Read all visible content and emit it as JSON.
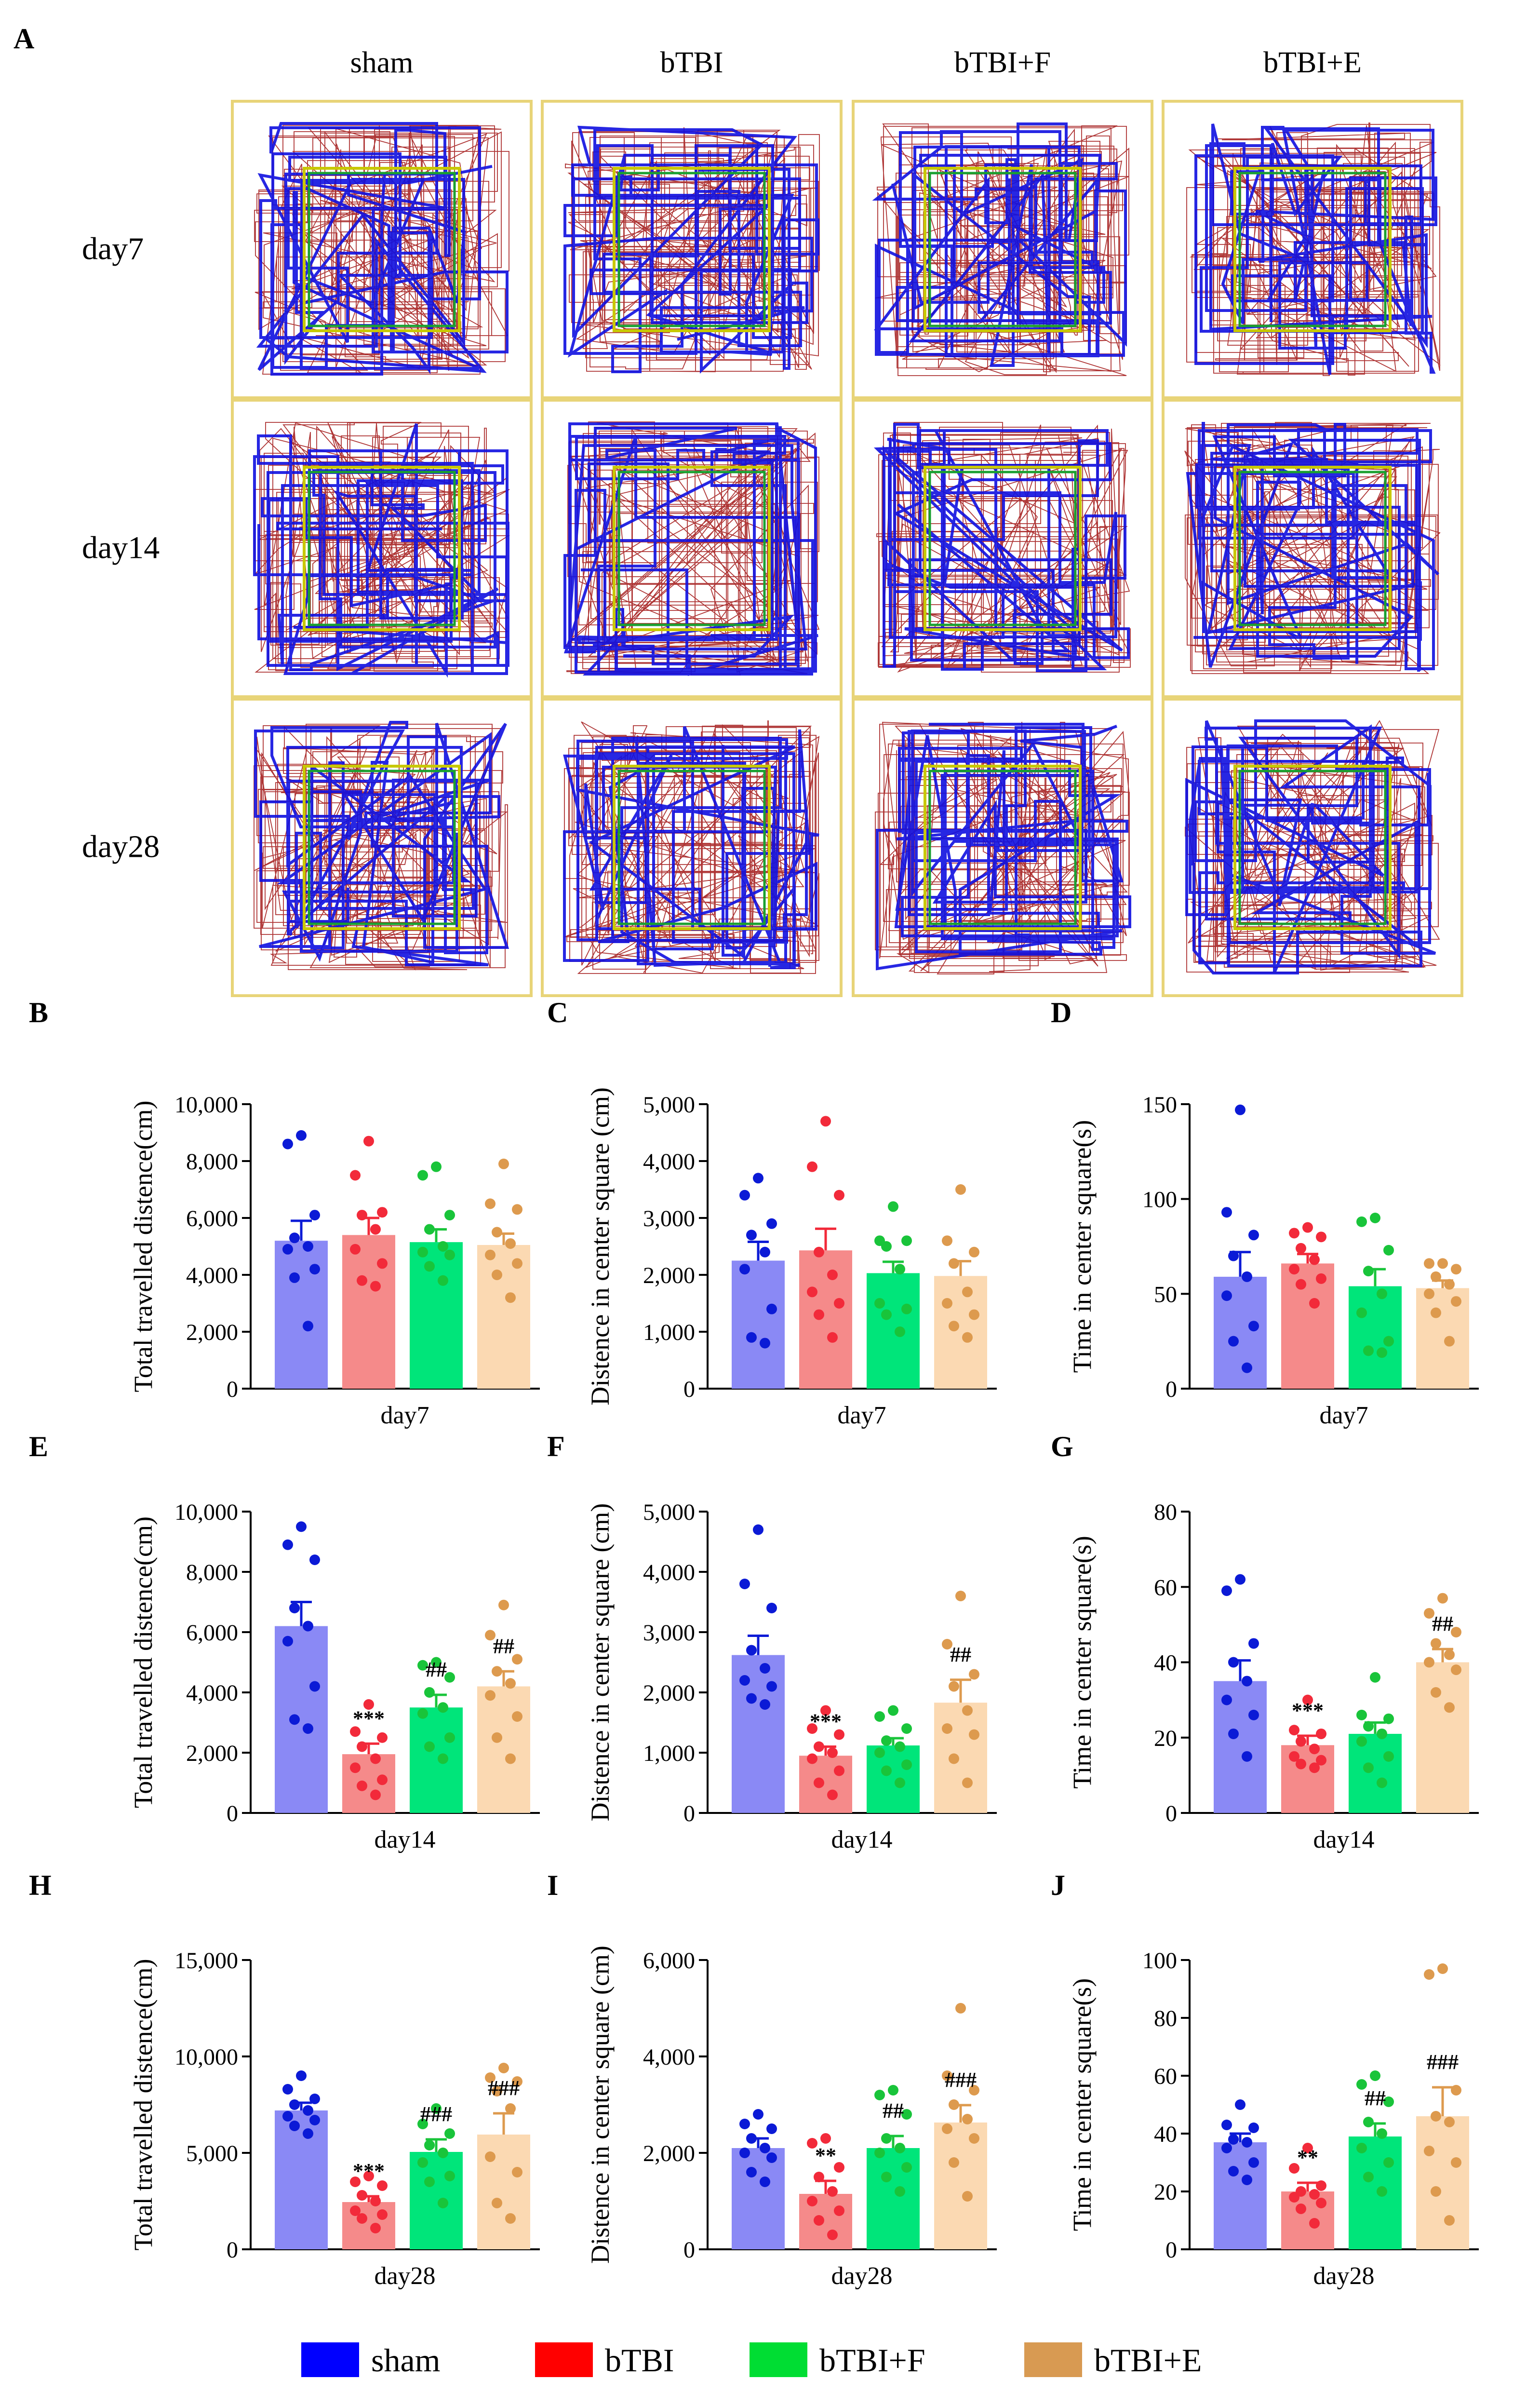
{
  "panel_a": {
    "label": "A",
    "columns": [
      "sham",
      "bTBI",
      "bTBI+F",
      "bTBI+E"
    ],
    "rows": [
      "day7",
      "day14",
      "day28"
    ]
  },
  "colors": {
    "sham": "#0000ff",
    "bTBI": "#ff0000",
    "bTBI+F": "#00dd33",
    "bTBI+E": "#d89a52",
    "bar_sham": "#8a89f5",
    "bar_bTBI": "#f58a8a",
    "bar_bTBI+F": "#00e57a",
    "bar_bTBI+E": "#fbd9b2",
    "pt_sham": "#0b1ad6",
    "pt_bTBI": "#f22a3a",
    "pt_bTBI+F": "#19c43a",
    "pt_bTBI+E": "#dd9a4e",
    "track_red": "#a01010",
    "track_blue": "#1010e0",
    "arena_border": "#e8d478",
    "zone_yellow": "#c8c800",
    "zone_green": "#1aa030"
  },
  "legend": {
    "items": [
      {
        "key": "sham",
        "label": "sham"
      },
      {
        "key": "bTBI",
        "label": "bTBI"
      },
      {
        "key": "bTBI+F",
        "label": "bTBI+F"
      },
      {
        "key": "bTBI+E",
        "label": "bTBI+E"
      }
    ]
  },
  "chart_data": [
    {
      "label": "B",
      "type": "bar",
      "title": "",
      "xlabel": "day7",
      "ylabel": "Total travelled distence(cm)",
      "categories": [
        "sham",
        "bTBI",
        "bTBI+F",
        "bTBI+E"
      ],
      "ylim": [
        0,
        10000
      ],
      "yticks": [
        0,
        2000,
        4000,
        6000,
        8000,
        10000
      ],
      "ytick_labels": [
        "0",
        "2,000",
        "4,000",
        "6,000",
        "8,000",
        "10,000"
      ],
      "values": [
        5200,
        5400,
        5150,
        5050
      ],
      "errors": [
        700,
        600,
        450,
        400
      ],
      "points": [
        [
          8900,
          8600,
          6100,
          5300,
          5000,
          4900,
          4200,
          3900,
          2200
        ],
        [
          8700,
          7500,
          6200,
          6100,
          5600,
          4900,
          4400,
          3800,
          3600
        ],
        [
          7800,
          7500,
          6100,
          5600,
          5000,
          4800,
          4700,
          4300,
          3800
        ],
        [
          7900,
          6500,
          6300,
          5500,
          5100,
          4700,
          4400,
          4000,
          3200
        ]
      ],
      "annotations": [
        "",
        "",
        "",
        ""
      ]
    },
    {
      "label": "C",
      "type": "bar",
      "title": "",
      "xlabel": "day7",
      "ylabel": "Distence in center square (cm)",
      "categories": [
        "sham",
        "bTBI",
        "bTBI+F",
        "bTBI+E"
      ],
      "ylim": [
        0,
        5000
      ],
      "yticks": [
        0,
        1000,
        2000,
        3000,
        4000,
        5000
      ],
      "ytick_labels": [
        "0",
        "1,000",
        "2,000",
        "3,000",
        "4,000",
        "5,000"
      ],
      "values": [
        2250,
        2430,
        2030,
        1980
      ],
      "errors": [
        330,
        380,
        200,
        260
      ],
      "points": [
        [
          3700,
          3400,
          2900,
          2700,
          2400,
          2100,
          1400,
          900,
          800
        ],
        [
          4700,
          3900,
          3400,
          2400,
          2000,
          1700,
          1500,
          1300,
          900
        ],
        [
          3200,
          2600,
          2600,
          2500,
          2100,
          1500,
          1400,
          1300,
          1000
        ],
        [
          3500,
          2600,
          2400,
          2200,
          1700,
          1500,
          1300,
          1100,
          900
        ]
      ],
      "annotations": [
        "",
        "",
        "",
        ""
      ]
    },
    {
      "label": "D",
      "type": "bar",
      "title": "",
      "xlabel": "day7",
      "ylabel": "Time in center square(s)",
      "categories": [
        "sham",
        "bTBI",
        "bTBI+F",
        "bTBI+E"
      ],
      "ylim": [
        0,
        150
      ],
      "yticks": [
        0,
        50,
        100,
        150
      ],
      "ytick_labels": [
        "0",
        "50",
        "100",
        "150"
      ],
      "values": [
        59,
        66,
        54,
        53
      ],
      "errors": [
        13,
        5,
        9,
        4
      ],
      "points": [
        [
          147,
          93,
          81,
          70,
          59,
          49,
          33,
          25,
          11
        ],
        [
          85,
          82,
          80,
          74,
          68,
          63,
          58,
          55,
          45
        ],
        [
          90,
          88,
          73,
          62,
          50,
          40,
          25,
          20,
          19
        ],
        [
          66,
          66,
          63,
          59,
          55,
          50,
          46,
          40,
          25
        ]
      ],
      "annotations": [
        "",
        "",
        "",
        ""
      ]
    },
    {
      "label": "E",
      "type": "bar",
      "title": "",
      "xlabel": "day14",
      "ylabel": "Total travelled distence(cm)",
      "categories": [
        "sham",
        "bTBI",
        "bTBI+F",
        "bTBI+E"
      ],
      "ylim": [
        0,
        10000
      ],
      "yticks": [
        0,
        2000,
        4000,
        6000,
        8000,
        10000
      ],
      "ytick_labels": [
        "0",
        "2,000",
        "4,000",
        "6,000",
        "8,000",
        "10,000"
      ],
      "values": [
        6200,
        1950,
        3500,
        4200
      ],
      "errors": [
        800,
        350,
        420,
        500
      ],
      "points": [
        [
          9500,
          8900,
          8400,
          6800,
          6200,
          5700,
          4200,
          3100,
          2800
        ],
        [
          3600,
          2700,
          2500,
          2200,
          1800,
          1500,
          1100,
          900,
          600
        ],
        [
          5000,
          4900,
          4500,
          4000,
          3500,
          3300,
          2500,
          2200,
          1800
        ],
        [
          6900,
          5900,
          5100,
          4700,
          4300,
          3900,
          3200,
          2500,
          1800
        ]
      ],
      "annotations": [
        "",
        "***",
        "##",
        "##"
      ]
    },
    {
      "label": "F",
      "type": "bar",
      "title": "",
      "xlabel": "day14",
      "ylabel": "Distence in center square (cm)",
      "categories": [
        "sham",
        "bTBI",
        "bTBI+F",
        "bTBI+E"
      ],
      "ylim": [
        0,
        5000
      ],
      "yticks": [
        0,
        1000,
        2000,
        3000,
        4000,
        5000
      ],
      "ytick_labels": [
        "0",
        "1,000",
        "2,000",
        "3,000",
        "4,000",
        "5,000"
      ],
      "values": [
        2620,
        950,
        1120,
        1830
      ],
      "errors": [
        320,
        150,
        120,
        380
      ],
      "points": [
        [
          4700,
          3800,
          3400,
          2700,
          2400,
          2200,
          2100,
          1900,
          1800
        ],
        [
          1700,
          1400,
          1300,
          1100,
          1000,
          900,
          700,
          500,
          300
        ],
        [
          1700,
          1600,
          1400,
          1200,
          1100,
          1000,
          800,
          700,
          500
        ],
        [
          3600,
          2800,
          2300,
          2100,
          1700,
          1400,
          1300,
          900,
          500
        ]
      ],
      "annotations": [
        "",
        "***",
        "",
        "##"
      ]
    },
    {
      "label": "G",
      "type": "bar",
      "title": "",
      "xlabel": "day14",
      "ylabel": "Time in center square(s)",
      "categories": [
        "sham",
        "bTBI",
        "bTBI+F",
        "bTBI+E"
      ],
      "ylim": [
        0,
        80
      ],
      "yticks": [
        0,
        20,
        40,
        60,
        80
      ],
      "ytick_labels": [
        "0",
        "20",
        "40",
        "60",
        "80"
      ],
      "values": [
        35,
        18,
        21,
        40
      ],
      "errors": [
        5.5,
        2.5,
        3,
        3.5
      ],
      "points": [
        [
          62,
          59,
          45,
          40,
          35,
          30,
          26,
          21,
          15
        ],
        [
          30,
          22,
          21,
          19,
          17,
          15,
          14,
          13,
          12
        ],
        [
          36,
          26,
          25,
          23,
          21,
          19,
          15,
          12,
          8
        ],
        [
          57,
          53,
          48,
          45,
          42,
          40,
          38,
          32,
          28
        ]
      ],
      "annotations": [
        "",
        "***",
        "",
        "##"
      ]
    },
    {
      "label": "H",
      "type": "bar",
      "title": "",
      "xlabel": "day28",
      "ylabel": "Total travelled distence(cm)",
      "categories": [
        "sham",
        "bTBI",
        "bTBI+F",
        "bTBI+E"
      ],
      "ylim": [
        0,
        15000
      ],
      "yticks": [
        0,
        5000,
        10000,
        15000
      ],
      "ytick_labels": [
        "0",
        "5,000",
        "10,000",
        "15,000"
      ],
      "values": [
        7200,
        2450,
        5050,
        5950
      ],
      "errors": [
        400,
        300,
        650,
        1100
      ],
      "points": [
        [
          9000,
          8300,
          7800,
          7500,
          7200,
          6900,
          6700,
          6400,
          6000
        ],
        [
          3800,
          3500,
          3300,
          2800,
          2500,
          2000,
          1800,
          1600,
          1100
        ],
        [
          7300,
          6500,
          6000,
          5400,
          5000,
          4500,
          3800,
          3500,
          2400
        ],
        [
          9400,
          8900,
          8700,
          8200,
          7300,
          4800,
          4000,
          2400,
          1600
        ]
      ],
      "annotations": [
        "",
        "***",
        "###",
        "###"
      ]
    },
    {
      "label": "I",
      "type": "bar",
      "title": "",
      "xlabel": "day28",
      "ylabel": "Distence in center square (cm)",
      "categories": [
        "sham",
        "bTBI",
        "bTBI+F",
        "bTBI+E"
      ],
      "ylim": [
        0,
        6000
      ],
      "yticks": [
        0,
        2000,
        4000,
        6000
      ],
      "ytick_labels": [
        "0",
        "2,000",
        "4,000",
        "6,000"
      ],
      "values": [
        2100,
        1150,
        2100,
        2630
      ],
      "errors": [
        200,
        270,
        250,
        360
      ],
      "points": [
        [
          2800,
          2600,
          2500,
          2300,
          2100,
          2000,
          1900,
          1600,
          1400
        ],
        [
          2300,
          2200,
          1700,
          1500,
          1200,
          1000,
          800,
          600,
          300
        ],
        [
          3300,
          3200,
          2800,
          2300,
          2100,
          2000,
          1700,
          1500,
          1200
        ],
        [
          5000,
          3600,
          3300,
          3000,
          2700,
          2500,
          2300,
          1800,
          1100
        ]
      ],
      "annotations": [
        "",
        "**",
        "##",
        "###"
      ]
    },
    {
      "label": "J",
      "type": "bar",
      "title": "",
      "xlabel": "day28",
      "ylabel": "Time in center square(s)",
      "categories": [
        "sham",
        "bTBI",
        "bTBI+F",
        "bTBI+E"
      ],
      "ylim": [
        0,
        100
      ],
      "yticks": [
        0,
        20,
        40,
        60,
        80,
        100
      ],
      "ytick_labels": [
        "0",
        "20",
        "40",
        "60",
        "80",
        "100"
      ],
      "values": [
        37,
        20,
        39,
        46
      ],
      "errors": [
        3,
        3,
        4.5,
        10
      ],
      "points": [
        [
          50,
          43,
          42,
          38,
          37,
          35,
          30,
          27,
          24
        ],
        [
          35,
          28,
          22,
          20,
          19,
          18,
          16,
          14,
          9
        ],
        [
          60,
          57,
          51,
          44,
          40,
          35,
          30,
          25,
          20
        ],
        [
          97,
          95,
          55,
          46,
          44,
          34,
          30,
          20,
          10
        ]
      ],
      "annotations": [
        "",
        "**",
        "##",
        "###"
      ]
    }
  ]
}
